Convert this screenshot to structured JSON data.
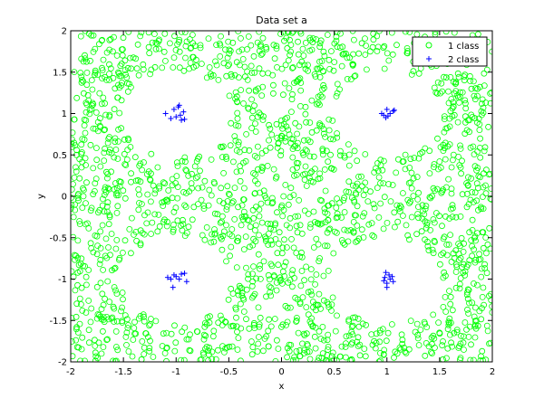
{
  "chart_data": {
    "type": "scatter",
    "title": "Data set a",
    "xlabel": "x",
    "ylabel": "y",
    "xlim": [
      -2,
      2
    ],
    "ylim": [
      -2,
      2
    ],
    "xticks": [
      "-2",
      "-1.5",
      "-1",
      "-0.5",
      "0",
      "0.5",
      "1",
      "1.5",
      "2"
    ],
    "yticks": [
      "-2",
      "-1.5",
      "-1",
      "-0.5",
      "0",
      "0.5",
      "1",
      "1.5",
      "2"
    ],
    "xtick_values": [
      -2,
      -1.5,
      -1,
      -0.5,
      0,
      0.5,
      1,
      1.5,
      2
    ],
    "ytick_values": [
      -2,
      -1.5,
      -1,
      -0.5,
      0,
      0.5,
      1,
      1.5,
      2
    ],
    "grid": false,
    "legend_position": "top-right",
    "series": [
      {
        "name": "1 class",
        "marker": "circle",
        "color": "#00ff00",
        "distribution": "uniform in [-2,2]x[-2,2] excluding circles of radius ~0.5 around (±1,±1)",
        "approx_count": 2000
      },
      {
        "name": "2 class",
        "marker": "plus",
        "color": "#0000ff",
        "points": [
          [
            -1.1,
            1.0
          ],
          [
            -1.05,
            0.94
          ],
          [
            -1.02,
            1.05
          ],
          [
            -0.98,
            1.08
          ],
          [
            -0.96,
            0.98
          ],
          [
            -0.95,
            0.92
          ],
          [
            -0.93,
            1.02
          ],
          [
            -0.97,
            1.1
          ],
          [
            -1.0,
            0.96
          ],
          [
            -0.92,
            0.93
          ],
          [
            0.97,
            0.98
          ],
          [
            0.99,
            0.95
          ],
          [
            1.0,
            1.05
          ],
          [
            1.03,
            1.0
          ],
          [
            1.06,
            1.03
          ],
          [
            1.07,
            1.04
          ],
          [
            0.95,
            1.0
          ],
          [
            1.01,
            0.97
          ],
          [
            -1.08,
            -0.98
          ],
          [
            -1.05,
            -1.0
          ],
          [
            -1.03,
            -1.1
          ],
          [
            -1.0,
            -0.97
          ],
          [
            -0.97,
            -1.0
          ],
          [
            -0.95,
            -0.94
          ],
          [
            -0.92,
            -0.93
          ],
          [
            -0.9,
            -1.03
          ],
          [
            -1.02,
            -0.95
          ],
          [
            0.97,
            -1.02
          ],
          [
            0.99,
            -0.92
          ],
          [
            1.0,
            -1.05
          ],
          [
            1.02,
            -0.95
          ],
          [
            1.03,
            -1.0
          ],
          [
            1.05,
            -0.97
          ],
          [
            1.06,
            -1.03
          ],
          [
            1.0,
            -1.1
          ],
          [
            0.98,
            -0.98
          ]
        ]
      }
    ]
  }
}
